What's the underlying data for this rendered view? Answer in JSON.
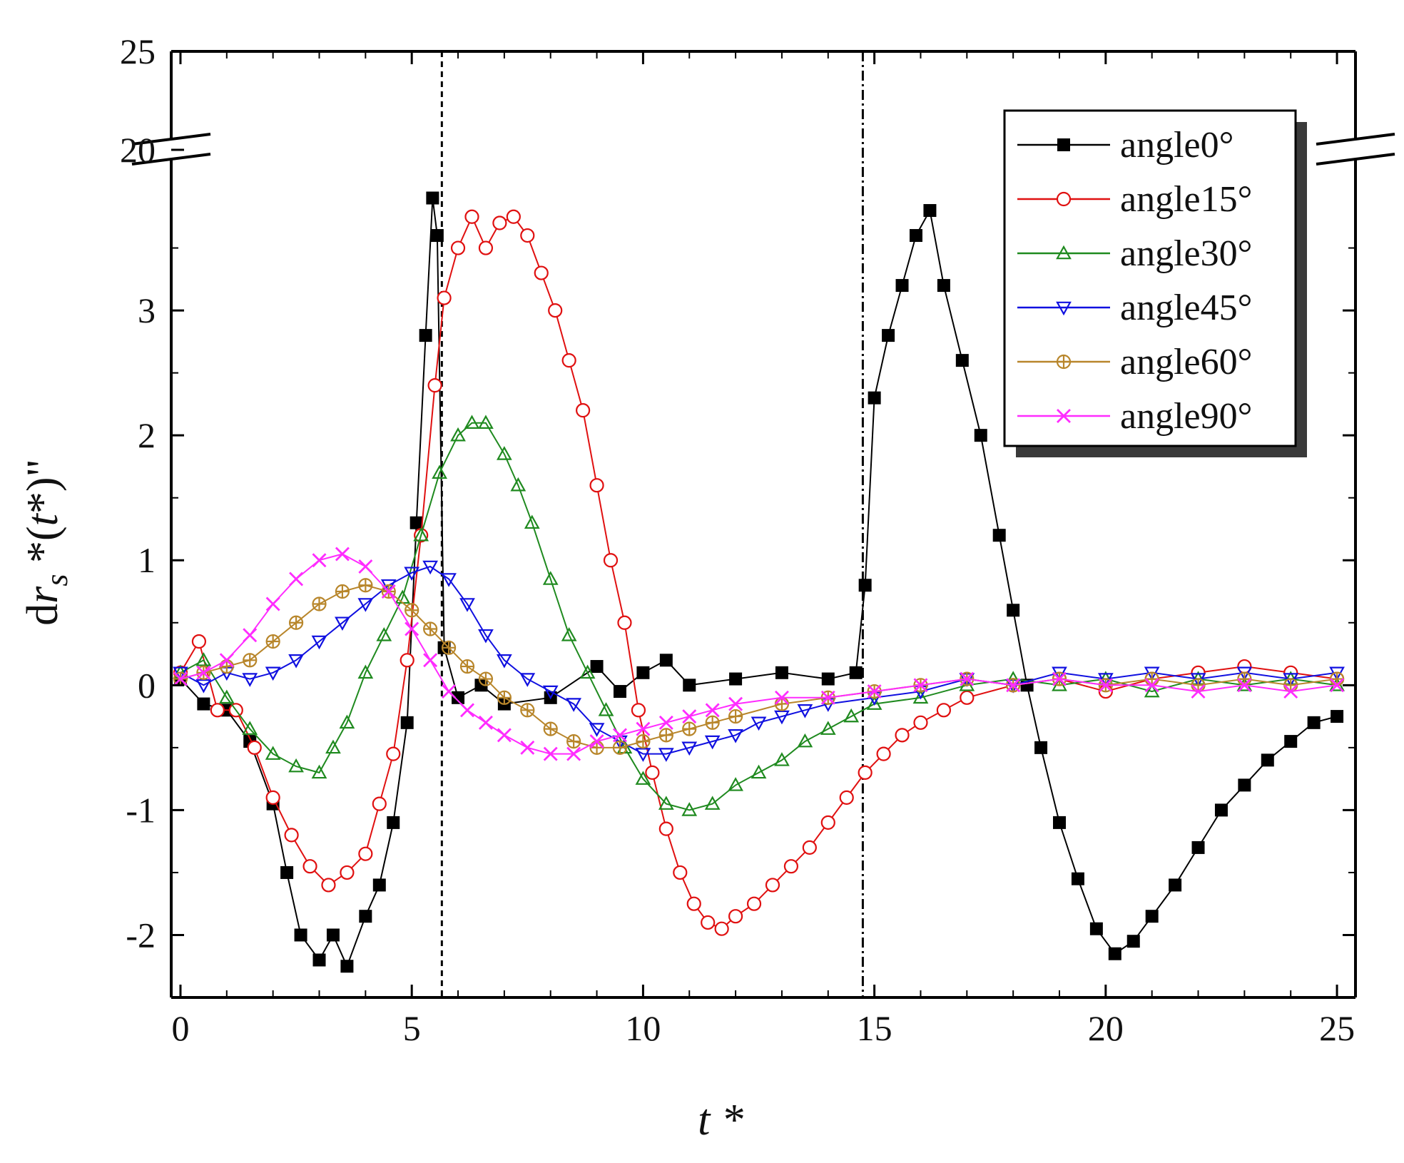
{
  "chart_data": {
    "type": "line",
    "xlabel": "t *",
    "ylabel": "dr_s *(t*)\"",
    "ylabel_parts": {
      "d": "d",
      "r": "r",
      "sub": "s",
      "star": " *(",
      "t": "t",
      "tail": "*)\""
    },
    "xlim": [
      -0.2,
      25.4
    ],
    "ylim_lower": [
      -2.5,
      4.2
    ],
    "ylim_upper_segment": [
      20,
      25
    ],
    "y_axis_break": "between 4.2 and 20",
    "x_ticks": [
      0,
      5,
      10,
      15,
      20,
      25
    ],
    "x_tick_labels": [
      "0",
      "5",
      "10",
      "15",
      "20",
      "25"
    ],
    "y_ticks": [
      -2,
      -1,
      0,
      1,
      2,
      3
    ],
    "y_tick_labels": [
      "-2",
      "-1",
      "0",
      "1",
      "2",
      "3"
    ],
    "y_upper_ticks": [
      20,
      25
    ],
    "y_upper_tick_labels": [
      "20",
      "25"
    ],
    "vertical_reference_lines": [
      5.65,
      14.75
    ],
    "legend": [
      "angle0°",
      "angle15°",
      "angle30°",
      "angle45°",
      "angle60°",
      "angle90°"
    ],
    "legend_position": "top-right",
    "series": [
      {
        "name": "angle0°",
        "color": "#000000",
        "marker": "filled-square",
        "points": [
          [
            0,
            0.05
          ],
          [
            0.5,
            -0.15
          ],
          [
            1,
            -0.2
          ],
          [
            1.5,
            -0.45
          ],
          [
            2,
            -0.95
          ],
          [
            2.3,
            -1.5
          ],
          [
            2.6,
            -2.0
          ],
          [
            3.0,
            -2.2
          ],
          [
            3.3,
            -2.0
          ],
          [
            3.6,
            -2.25
          ],
          [
            4.0,
            -1.85
          ],
          [
            4.3,
            -1.6
          ],
          [
            4.6,
            -1.1
          ],
          [
            4.9,
            -0.3
          ],
          [
            5.1,
            1.3
          ],
          [
            5.3,
            2.8
          ],
          [
            5.45,
            3.9
          ],
          [
            5.55,
            3.6
          ],
          [
            5.7,
            0.3
          ],
          [
            6.0,
            -0.1
          ],
          [
            6.5,
            0.0
          ],
          [
            7.0,
            -0.15
          ],
          [
            8.0,
            -0.1
          ],
          [
            9.0,
            0.15
          ],
          [
            9.5,
            -0.05
          ],
          [
            10.0,
            0.1
          ],
          [
            10.5,
            0.2
          ],
          [
            11.0,
            0.0
          ],
          [
            12.0,
            0.05
          ],
          [
            13.0,
            0.1
          ],
          [
            14.0,
            0.05
          ],
          [
            14.6,
            0.1
          ],
          [
            14.8,
            0.8
          ],
          [
            15.0,
            2.3
          ],
          [
            15.3,
            2.8
          ],
          [
            15.6,
            3.2
          ],
          [
            15.9,
            3.6
          ],
          [
            16.2,
            3.8
          ],
          [
            16.5,
            3.2
          ],
          [
            16.9,
            2.6
          ],
          [
            17.3,
            2.0
          ],
          [
            17.7,
            1.2
          ],
          [
            18.0,
            0.6
          ],
          [
            18.3,
            0.0
          ],
          [
            18.6,
            -0.5
          ],
          [
            19.0,
            -1.1
          ],
          [
            19.4,
            -1.55
          ],
          [
            19.8,
            -1.95
          ],
          [
            20.2,
            -2.15
          ],
          [
            20.6,
            -2.05
          ],
          [
            21.0,
            -1.85
          ],
          [
            21.5,
            -1.6
          ],
          [
            22.0,
            -1.3
          ],
          [
            22.5,
            -1.0
          ],
          [
            23.0,
            -0.8
          ],
          [
            23.5,
            -0.6
          ],
          [
            24.0,
            -0.45
          ],
          [
            24.5,
            -0.3
          ],
          [
            25.0,
            -0.25
          ]
        ]
      },
      {
        "name": "angle15°",
        "color": "#e01010",
        "marker": "open-circle",
        "points": [
          [
            0,
            0.1
          ],
          [
            0.4,
            0.35
          ],
          [
            0.8,
            -0.2
          ],
          [
            1.2,
            -0.2
          ],
          [
            1.6,
            -0.5
          ],
          [
            2.0,
            -0.9
          ],
          [
            2.4,
            -1.2
          ],
          [
            2.8,
            -1.45
          ],
          [
            3.2,
            -1.6
          ],
          [
            3.6,
            -1.5
          ],
          [
            4.0,
            -1.35
          ],
          [
            4.3,
            -0.95
          ],
          [
            4.6,
            -0.55
          ],
          [
            4.9,
            0.2
          ],
          [
            5.2,
            1.2
          ],
          [
            5.5,
            2.4
          ],
          [
            5.7,
            3.1
          ],
          [
            6.0,
            3.5
          ],
          [
            6.3,
            3.75
          ],
          [
            6.6,
            3.5
          ],
          [
            6.9,
            3.7
          ],
          [
            7.2,
            3.75
          ],
          [
            7.5,
            3.6
          ],
          [
            7.8,
            3.3
          ],
          [
            8.1,
            3.0
          ],
          [
            8.4,
            2.6
          ],
          [
            8.7,
            2.2
          ],
          [
            9.0,
            1.6
          ],
          [
            9.3,
            1.0
          ],
          [
            9.6,
            0.5
          ],
          [
            9.9,
            -0.2
          ],
          [
            10.2,
            -0.7
          ],
          [
            10.5,
            -1.15
          ],
          [
            10.8,
            -1.5
          ],
          [
            11.1,
            -1.75
          ],
          [
            11.4,
            -1.9
          ],
          [
            11.7,
            -1.95
          ],
          [
            12.0,
            -1.85
          ],
          [
            12.4,
            -1.75
          ],
          [
            12.8,
            -1.6
          ],
          [
            13.2,
            -1.45
          ],
          [
            13.6,
            -1.3
          ],
          [
            14.0,
            -1.1
          ],
          [
            14.4,
            -0.9
          ],
          [
            14.8,
            -0.7
          ],
          [
            15.2,
            -0.55
          ],
          [
            15.6,
            -0.4
          ],
          [
            16.0,
            -0.3
          ],
          [
            16.5,
            -0.2
          ],
          [
            17.0,
            -0.1
          ],
          [
            18.0,
            0.0
          ],
          [
            19.0,
            0.05
          ],
          [
            20.0,
            -0.05
          ],
          [
            21.0,
            0.05
          ],
          [
            22.0,
            0.1
          ],
          [
            23.0,
            0.15
          ],
          [
            24.0,
            0.1
          ],
          [
            25.0,
            0.05
          ]
        ]
      },
      {
        "name": "angle30°",
        "color": "#1f8a1f",
        "marker": "open-triangle-up",
        "points": [
          [
            0,
            0.1
          ],
          [
            0.5,
            0.2
          ],
          [
            1.0,
            -0.1
          ],
          [
            1.5,
            -0.35
          ],
          [
            2.0,
            -0.55
          ],
          [
            2.5,
            -0.65
          ],
          [
            3.0,
            -0.7
          ],
          [
            3.3,
            -0.5
          ],
          [
            3.6,
            -0.3
          ],
          [
            4.0,
            0.1
          ],
          [
            4.4,
            0.4
          ],
          [
            4.8,
            0.7
          ],
          [
            5.2,
            1.2
          ],
          [
            5.6,
            1.7
          ],
          [
            6.0,
            2.0
          ],
          [
            6.3,
            2.1
          ],
          [
            6.6,
            2.1
          ],
          [
            7.0,
            1.85
          ],
          [
            7.3,
            1.6
          ],
          [
            7.6,
            1.3
          ],
          [
            8.0,
            0.85
          ],
          [
            8.4,
            0.4
          ],
          [
            8.8,
            0.1
          ],
          [
            9.2,
            -0.2
          ],
          [
            9.6,
            -0.5
          ],
          [
            10.0,
            -0.75
          ],
          [
            10.5,
            -0.95
          ],
          [
            11.0,
            -1.0
          ],
          [
            11.5,
            -0.95
          ],
          [
            12.0,
            -0.8
          ],
          [
            12.5,
            -0.7
          ],
          [
            13.0,
            -0.6
          ],
          [
            13.5,
            -0.45
          ],
          [
            14.0,
            -0.35
          ],
          [
            14.5,
            -0.25
          ],
          [
            15.0,
            -0.15
          ],
          [
            16.0,
            -0.1
          ],
          [
            17.0,
            0.0
          ],
          [
            18.0,
            0.05
          ],
          [
            19.0,
            0.0
          ],
          [
            20.0,
            0.05
          ],
          [
            21.0,
            -0.05
          ],
          [
            22.0,
            0.05
          ],
          [
            23.0,
            0.0
          ],
          [
            24.0,
            0.05
          ],
          [
            25.0,
            0.0
          ]
        ]
      },
      {
        "name": "angle45°",
        "color": "#1010e0",
        "marker": "open-triangle-down",
        "points": [
          [
            0,
            0.1
          ],
          [
            0.5,
            0.0
          ],
          [
            1.0,
            0.1
          ],
          [
            1.5,
            0.05
          ],
          [
            2.0,
            0.1
          ],
          [
            2.5,
            0.2
          ],
          [
            3.0,
            0.35
          ],
          [
            3.5,
            0.5
          ],
          [
            4.0,
            0.65
          ],
          [
            4.5,
            0.8
          ],
          [
            5.0,
            0.9
          ],
          [
            5.4,
            0.95
          ],
          [
            5.8,
            0.85
          ],
          [
            6.2,
            0.65
          ],
          [
            6.6,
            0.4
          ],
          [
            7.0,
            0.2
          ],
          [
            7.5,
            0.05
          ],
          [
            8.0,
            -0.05
          ],
          [
            8.5,
            -0.15
          ],
          [
            9.0,
            -0.35
          ],
          [
            9.5,
            -0.45
          ],
          [
            10.0,
            -0.55
          ],
          [
            10.5,
            -0.55
          ],
          [
            11.0,
            -0.5
          ],
          [
            11.5,
            -0.45
          ],
          [
            12.0,
            -0.4
          ],
          [
            12.5,
            -0.3
          ],
          [
            13.0,
            -0.25
          ],
          [
            13.5,
            -0.2
          ],
          [
            14.0,
            -0.15
          ],
          [
            15.0,
            -0.1
          ],
          [
            16.0,
            -0.05
          ],
          [
            17.0,
            0.05
          ],
          [
            18.0,
            0.0
          ],
          [
            19.0,
            0.1
          ],
          [
            20.0,
            0.05
          ],
          [
            21.0,
            0.1
          ],
          [
            22.0,
            0.05
          ],
          [
            23.0,
            0.1
          ],
          [
            24.0,
            0.05
          ],
          [
            25.0,
            0.1
          ]
        ]
      },
      {
        "name": "angle60°",
        "color": "#b8862b",
        "marker": "open-circle-cross",
        "points": [
          [
            0,
            0.05
          ],
          [
            0.5,
            0.1
          ],
          [
            1.0,
            0.15
          ],
          [
            1.5,
            0.2
          ],
          [
            2.0,
            0.35
          ],
          [
            2.5,
            0.5
          ],
          [
            3.0,
            0.65
          ],
          [
            3.5,
            0.75
          ],
          [
            4.0,
            0.8
          ],
          [
            4.5,
            0.75
          ],
          [
            5.0,
            0.6
          ],
          [
            5.4,
            0.45
          ],
          [
            5.8,
            0.3
          ],
          [
            6.2,
            0.15
          ],
          [
            6.6,
            0.05
          ],
          [
            7.0,
            -0.1
          ],
          [
            7.5,
            -0.2
          ],
          [
            8.0,
            -0.35
          ],
          [
            8.5,
            -0.45
          ],
          [
            9.0,
            -0.5
          ],
          [
            9.5,
            -0.5
          ],
          [
            10.0,
            -0.45
          ],
          [
            10.5,
            -0.4
          ],
          [
            11.0,
            -0.35
          ],
          [
            11.5,
            -0.3
          ],
          [
            12.0,
            -0.25
          ],
          [
            13.0,
            -0.15
          ],
          [
            14.0,
            -0.1
          ],
          [
            15.0,
            -0.05
          ],
          [
            16.0,
            0.0
          ],
          [
            17.0,
            0.05
          ],
          [
            18.0,
            0.0
          ],
          [
            19.0,
            0.05
          ],
          [
            20.0,
            0.0
          ],
          [
            21.0,
            0.05
          ],
          [
            22.0,
            0.0
          ],
          [
            23.0,
            0.05
          ],
          [
            24.0,
            0.0
          ],
          [
            25.0,
            0.05
          ]
        ]
      },
      {
        "name": "angle90°",
        "color": "#ff2cff",
        "marker": "open-x",
        "points": [
          [
            0,
            0.05
          ],
          [
            0.5,
            0.1
          ],
          [
            1.0,
            0.2
          ],
          [
            1.5,
            0.4
          ],
          [
            2.0,
            0.65
          ],
          [
            2.5,
            0.85
          ],
          [
            3.0,
            1.0
          ],
          [
            3.5,
            1.05
          ],
          [
            4.0,
            0.95
          ],
          [
            4.5,
            0.75
          ],
          [
            5.0,
            0.45
          ],
          [
            5.4,
            0.2
          ],
          [
            5.8,
            -0.05
          ],
          [
            6.2,
            -0.2
          ],
          [
            6.6,
            -0.3
          ],
          [
            7.0,
            -0.4
          ],
          [
            7.5,
            -0.5
          ],
          [
            8.0,
            -0.55
          ],
          [
            8.5,
            -0.55
          ],
          [
            9.0,
            -0.45
          ],
          [
            9.5,
            -0.4
          ],
          [
            10.0,
            -0.35
          ],
          [
            10.5,
            -0.3
          ],
          [
            11.0,
            -0.25
          ],
          [
            11.5,
            -0.2
          ],
          [
            12.0,
            -0.15
          ],
          [
            13.0,
            -0.1
          ],
          [
            14.0,
            -0.1
          ],
          [
            15.0,
            -0.05
          ],
          [
            16.0,
            0.0
          ],
          [
            17.0,
            0.05
          ],
          [
            18.0,
            0.0
          ],
          [
            19.0,
            0.05
          ],
          [
            20.0,
            0.0
          ],
          [
            21.0,
            0.0
          ],
          [
            22.0,
            -0.05
          ],
          [
            23.0,
            0.0
          ],
          [
            24.0,
            -0.05
          ],
          [
            25.0,
            0.0
          ]
        ]
      }
    ]
  }
}
